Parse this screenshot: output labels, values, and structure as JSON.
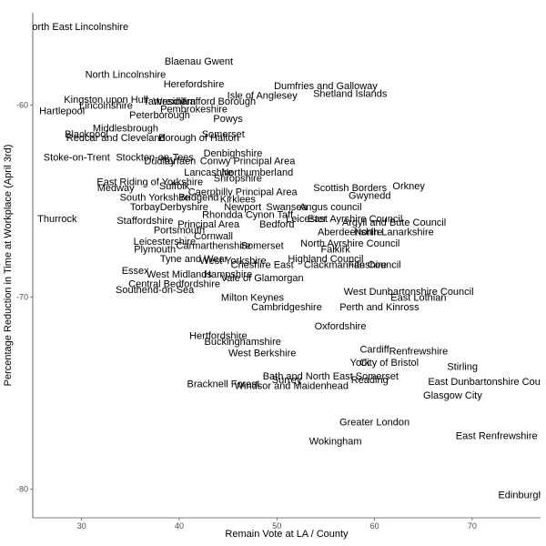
{
  "chart_data": {
    "type": "scatter",
    "xlabel": "Remain Vote at LA / County",
    "ylabel": "Percentage Reduction in Time at Workplace (April 3rd)",
    "xlim": [
      25,
      77
    ],
    "ylim": [
      -81.5,
      -55.2
    ],
    "x_ticks": [
      30,
      40,
      50,
      60,
      70
    ],
    "y_ticks": [
      -60,
      -70,
      -80
    ],
    "x_tick_labels": [
      "30",
      "40",
      "50",
      "60",
      "70"
    ],
    "y_tick_labels": [
      "-60",
      "-70",
      "-80"
    ],
    "grid": false,
    "points": [
      {
        "label": "North East Lincolnshire",
        "x": 29.5,
        "y": -55.9
      },
      {
        "label": "Blaenau Gwent",
        "x": 42.0,
        "y": -57.7
      },
      {
        "label": "North Lincolnshire",
        "x": 34.5,
        "y": -58.4
      },
      {
        "label": "Herefordshire",
        "x": 41.5,
        "y": -58.9
      },
      {
        "label": "Dumfries and Galloway",
        "x": 55.0,
        "y": -59.0
      },
      {
        "label": "Shetland Islands",
        "x": 57.5,
        "y": -59.4
      },
      {
        "label": "Kingston upon Hull",
        "x": 32.5,
        "y": -59.7
      },
      {
        "label": "Tameside",
        "x": 38.5,
        "y": -59.8
      },
      {
        "label": "Wrexham",
        "x": 39.5,
        "y": -59.8
      },
      {
        "label": "Trafford Borough",
        "x": 44.0,
        "y": -59.8
      },
      {
        "label": "Isle of Anglesey",
        "x": 48.5,
        "y": -59.5
      },
      {
        "label": "Lincolnshire",
        "x": 32.5,
        "y": -60.0
      },
      {
        "label": "Pembrokeshire",
        "x": 41.5,
        "y": -60.2
      },
      {
        "label": "Hartlepool",
        "x": 28.0,
        "y": -60.3
      },
      {
        "label": "Peterborough",
        "x": 38.0,
        "y": -60.5
      },
      {
        "label": "Powys",
        "x": 45.0,
        "y": -60.7
      },
      {
        "label": "Middlesbrough",
        "x": 34.5,
        "y": -61.2
      },
      {
        "label": "Blackpool",
        "x": 30.5,
        "y": -61.5
      },
      {
        "label": "Redcar and Cleveland",
        "x": 33.5,
        "y": -61.7
      },
      {
        "label": "Somerset",
        "x": 44.5,
        "y": -61.5
      },
      {
        "label": "Borough of Halton",
        "x": 42.0,
        "y": -61.7
      },
      {
        "label": "Stoke-on-Trent",
        "x": 29.5,
        "y": -62.7
      },
      {
        "label": "Stockton-on-Tees",
        "x": 37.5,
        "y": -62.7
      },
      {
        "label": "Denbighshire",
        "x": 45.5,
        "y": -62.5
      },
      {
        "label": "Dudley",
        "x": 38.0,
        "y": -62.9
      },
      {
        "label": "Torfaen",
        "x": 40.0,
        "y": -62.9
      },
      {
        "label": "Conwy Principal Area",
        "x": 47.0,
        "y": -62.9
      },
      {
        "label": "Lancashire",
        "x": 43.0,
        "y": -63.5
      },
      {
        "label": "Northumberland",
        "x": 48.0,
        "y": -63.5
      },
      {
        "label": "Shropshire",
        "x": 46.0,
        "y": -63.8
      },
      {
        "label": "East Riding of Yorkshire",
        "x": 37.0,
        "y": -64.0
      },
      {
        "label": "Medway",
        "x": 33.5,
        "y": -64.3
      },
      {
        "label": "Suffolk",
        "x": 39.5,
        "y": -64.2
      },
      {
        "label": "Scottish Borders",
        "x": 57.5,
        "y": -64.3
      },
      {
        "label": "Orkney",
        "x": 63.5,
        "y": -64.2
      },
      {
        "label": "Gwynedd",
        "x": 59.5,
        "y": -64.7
      },
      {
        "label": "South Yorkshire",
        "x": 37.5,
        "y": -64.8
      },
      {
        "label": "Bridgend",
        "x": 42.0,
        "y": -64.8
      },
      {
        "label": "Caerphilly Principal Area",
        "x": 46.5,
        "y": -64.5
      },
      {
        "label": "Kirklees",
        "x": 46.0,
        "y": -64.9
      },
      {
        "label": "Thurrock",
        "x": 27.5,
        "y": -65.9
      },
      {
        "label": "Torbay",
        "x": 36.5,
        "y": -65.3
      },
      {
        "label": "Derbyshire",
        "x": 40.5,
        "y": -65.3
      },
      {
        "label": "Newport",
        "x": 46.5,
        "y": -65.3
      },
      {
        "label": "Swansea",
        "x": 51.0,
        "y": -65.3
      },
      {
        "label": "Angus council",
        "x": 55.5,
        "y": -65.3
      },
      {
        "label": "Rhondda Cynon Taff",
        "x": 47.0,
        "y": -65.7
      },
      {
        "label": "Staffordshire",
        "x": 36.5,
        "y": -66.0
      },
      {
        "label": "Leicester",
        "x": 53.0,
        "y": -65.9
      },
      {
        "label": "East Ayrshire Council",
        "x": 58.0,
        "y": -65.9
      },
      {
        "label": "Argyll and Bute Council",
        "x": 62.0,
        "y": -66.1
      },
      {
        "label": "Portsmouth",
        "x": 40.0,
        "y": -66.5
      },
      {
        "label": "Principal Area",
        "x": 43.0,
        "y": -66.2
      },
      {
        "label": "Bedford",
        "x": 50.0,
        "y": -66.2
      },
      {
        "label": "Aberdeenshire",
        "x": 57.5,
        "y": -66.6
      },
      {
        "label": "North Lanarkshire",
        "x": 62.0,
        "y": -66.6
      },
      {
        "label": "Cornwall",
        "x": 43.5,
        "y": -66.8
      },
      {
        "label": "Leicestershire",
        "x": 38.5,
        "y": -67.1
      },
      {
        "label": "Carmarthenshire",
        "x": 43.5,
        "y": -67.3
      },
      {
        "label": "Somerset",
        "x": 48.5,
        "y": -67.3
      },
      {
        "label": "North Ayrshire Council",
        "x": 57.5,
        "y": -67.2
      },
      {
        "label": "Falkirk",
        "x": 56.0,
        "y": -67.5
      },
      {
        "label": "Plymouth",
        "x": 37.5,
        "y": -67.5
      },
      {
        "label": "Tyne and Wear",
        "x": 41.5,
        "y": -68.0
      },
      {
        "label": "West Yorkshire",
        "x": 45.5,
        "y": -68.1
      },
      {
        "label": "Highland Council",
        "x": 55.0,
        "y": -68.0
      },
      {
        "label": "Cheshire East",
        "x": 48.5,
        "y": -68.3
      },
      {
        "label": "Clackmannanshire",
        "x": 57.0,
        "y": -68.3
      },
      {
        "label": "Fife Council",
        "x": 60.0,
        "y": -68.3
      },
      {
        "label": "Essex",
        "x": 35.5,
        "y": -68.6
      },
      {
        "label": "West Midlands",
        "x": 40.0,
        "y": -68.8
      },
      {
        "label": "Hampshire",
        "x": 45.0,
        "y": -68.8
      },
      {
        "label": "Vale of Glamorgan",
        "x": 48.5,
        "y": -69.0
      },
      {
        "label": "Central Bedfordshire",
        "x": 39.5,
        "y": -69.3
      },
      {
        "label": "Southend-on-Sea",
        "x": 37.5,
        "y": -69.6
      },
      {
        "label": "Milton Keynes",
        "x": 47.5,
        "y": -70.0
      },
      {
        "label": "West Dunbartonshire Council",
        "x": 63.5,
        "y": -69.7
      },
      {
        "label": "East Lothian",
        "x": 64.5,
        "y": -70.0
      },
      {
        "label": "Cambridgeshire",
        "x": 51.0,
        "y": -70.5
      },
      {
        "label": "Perth and Kinross",
        "x": 60.5,
        "y": -70.5
      },
      {
        "label": "Oxfordshire",
        "x": 56.5,
        "y": -71.5
      },
      {
        "label": "Hertfordshire",
        "x": 44.0,
        "y": -72.0
      },
      {
        "label": "Buckinghamshire",
        "x": 46.5,
        "y": -72.3
      },
      {
        "label": "West Berkshire",
        "x": 48.5,
        "y": -72.9
      },
      {
        "label": "Cardiff",
        "x": 60.0,
        "y": -72.7
      },
      {
        "label": "Renfrewshire",
        "x": 64.5,
        "y": -72.8
      },
      {
        "label": "York",
        "x": 58.5,
        "y": -73.4
      },
      {
        "label": "City of Bristol",
        "x": 61.5,
        "y": -73.4
      },
      {
        "label": "Stirling",
        "x": 69.0,
        "y": -73.6
      },
      {
        "label": "Bath and North East Somerset",
        "x": 55.5,
        "y": -74.1
      },
      {
        "label": "Surrey",
        "x": 51.0,
        "y": -74.3
      },
      {
        "label": "Bracknell Forest",
        "x": 44.5,
        "y": -74.5
      },
      {
        "label": "Windsor and Maidenhead",
        "x": 51.5,
        "y": -74.6
      },
      {
        "label": "Reading",
        "x": 59.5,
        "y": -74.3
      },
      {
        "label": "East Dunbartonshire Council",
        "x": 72.0,
        "y": -74.4
      },
      {
        "label": "Glasgow City",
        "x": 68.0,
        "y": -75.1
      },
      {
        "label": "Greater London",
        "x": 60.0,
        "y": -76.5
      },
      {
        "label": "East Renfrewshire",
        "x": 72.5,
        "y": -77.2
      },
      {
        "label": "Wokingham",
        "x": 56.0,
        "y": -77.5
      },
      {
        "label": "Edinburgh",
        "x": 75.0,
        "y": -80.3
      }
    ]
  }
}
